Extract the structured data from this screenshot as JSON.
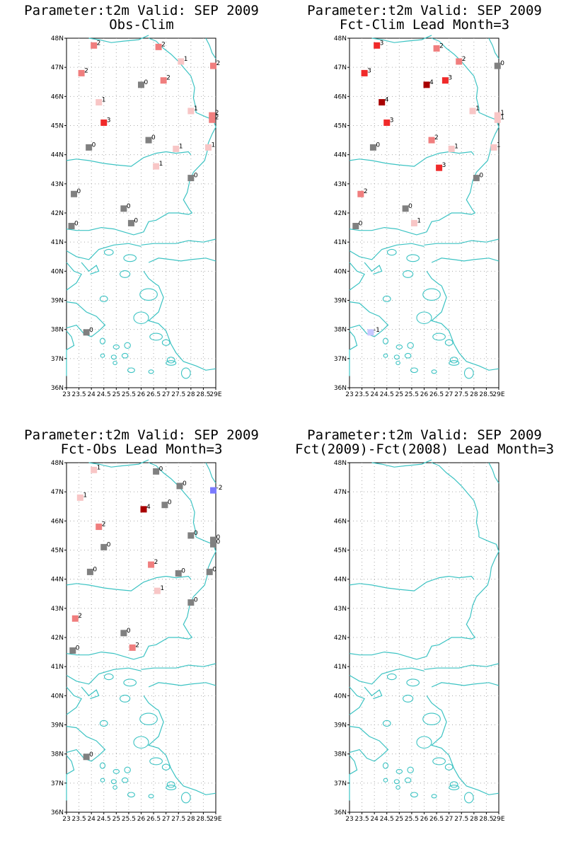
{
  "colors": {
    "coast": "#3cc3c3",
    "grid": "#aaaaaa",
    "zero": "#808080"
  },
  "y_ticks": [
    "48N",
    "47N",
    "46N",
    "45N",
    "44N",
    "43N",
    "42N",
    "41N",
    "40N",
    "39N",
    "38N",
    "37N",
    "36N"
  ],
  "x_ticks": [
    "23",
    "23.5",
    "24",
    "24.5",
    "25",
    "25.5",
    "26",
    "26.5",
    "27",
    "27.5",
    "28",
    "28.5",
    "29E"
  ],
  "panels": [
    {
      "title1": "Parameter:t2m Valid: SEP 2009",
      "title2": "Obs-Clim",
      "stations": [
        {
          "lon": 24.1,
          "lat": 47.75,
          "v": "2"
        },
        {
          "lon": 26.7,
          "lat": 47.7,
          "v": "2"
        },
        {
          "lon": 27.6,
          "lat": 47.2,
          "v": "1"
        },
        {
          "lon": 28.9,
          "lat": 47.05,
          "v": "2"
        },
        {
          "lon": 23.6,
          "lat": 46.8,
          "v": "2"
        },
        {
          "lon": 26.9,
          "lat": 46.55,
          "v": "2"
        },
        {
          "lon": 26.0,
          "lat": 46.4,
          "v": "0"
        },
        {
          "lon": 24.3,
          "lat": 45.8,
          "v": "1"
        },
        {
          "lon": 28.0,
          "lat": 45.5,
          "v": "1"
        },
        {
          "lon": 28.85,
          "lat": 45.35,
          "v": "2"
        },
        {
          "lon": 28.85,
          "lat": 45.2,
          "v": "2"
        },
        {
          "lon": 24.5,
          "lat": 45.1,
          "v": "3"
        },
        {
          "lon": 26.3,
          "lat": 44.5,
          "v": "0"
        },
        {
          "lon": 23.9,
          "lat": 44.25,
          "v": "0"
        },
        {
          "lon": 27.4,
          "lat": 44.2,
          "v": "1"
        },
        {
          "lon": 28.7,
          "lat": 44.25,
          "v": "1"
        },
        {
          "lon": 26.6,
          "lat": 43.6,
          "v": "1"
        },
        {
          "lon": 28.0,
          "lat": 43.2,
          "v": "0"
        },
        {
          "lon": 23.3,
          "lat": 42.65,
          "v": "0"
        },
        {
          "lon": 25.3,
          "lat": 42.15,
          "v": "0"
        },
        {
          "lon": 25.6,
          "lat": 41.65,
          "v": "0"
        },
        {
          "lon": 23.2,
          "lat": 41.55,
          "v": "0"
        },
        {
          "lon": 23.8,
          "lat": 37.9,
          "v": "0"
        }
      ]
    },
    {
      "title1": "Parameter:t2m Valid: SEP 2009",
      "title2": "Fct-Clim Lead Month=3",
      "stations": [
        {
          "lon": 24.1,
          "lat": 47.75,
          "v": "3"
        },
        {
          "lon": 26.5,
          "lat": 47.65,
          "v": "2"
        },
        {
          "lon": 27.4,
          "lat": 47.2,
          "v": "2"
        },
        {
          "lon": 28.95,
          "lat": 47.05,
          "v": "0"
        },
        {
          "lon": 23.6,
          "lat": 46.8,
          "v": "3"
        },
        {
          "lon": 26.1,
          "lat": 46.4,
          "v": "4"
        },
        {
          "lon": 26.85,
          "lat": 46.55,
          "v": "3"
        },
        {
          "lon": 24.3,
          "lat": 45.8,
          "v": "4"
        },
        {
          "lon": 24.5,
          "lat": 45.1,
          "v": "3"
        },
        {
          "lon": 27.95,
          "lat": 45.5,
          "v": "1"
        },
        {
          "lon": 28.95,
          "lat": 45.35,
          "v": "1"
        },
        {
          "lon": 28.95,
          "lat": 45.2,
          "v": "1"
        },
        {
          "lon": 26.3,
          "lat": 44.5,
          "v": "2"
        },
        {
          "lon": 23.95,
          "lat": 44.25,
          "v": "0"
        },
        {
          "lon": 27.1,
          "lat": 44.2,
          "v": "1"
        },
        {
          "lon": 28.8,
          "lat": 44.25,
          "v": "1"
        },
        {
          "lon": 26.6,
          "lat": 43.55,
          "v": "3"
        },
        {
          "lon": 28.1,
          "lat": 43.2,
          "v": "0"
        },
        {
          "lon": 23.45,
          "lat": 42.65,
          "v": "2"
        },
        {
          "lon": 25.25,
          "lat": 42.15,
          "v": "0"
        },
        {
          "lon": 25.6,
          "lat": 41.65,
          "v": "1"
        },
        {
          "lon": 23.25,
          "lat": 41.55,
          "v": "0"
        },
        {
          "lon": 23.85,
          "lat": 37.9,
          "v": "-1"
        }
      ]
    },
    {
      "title1": "Parameter:t2m Valid: SEP 2009",
      "title2": "Fct-Obs Lead Month=3",
      "stations": [
        {
          "lon": 24.1,
          "lat": 47.75,
          "v": "1"
        },
        {
          "lon": 26.6,
          "lat": 47.7,
          "v": "0"
        },
        {
          "lon": 27.55,
          "lat": 47.2,
          "v": "0"
        },
        {
          "lon": 28.9,
          "lat": 47.05,
          "v": "-2"
        },
        {
          "lon": 23.55,
          "lat": 46.8,
          "v": "1"
        },
        {
          "lon": 26.1,
          "lat": 46.4,
          "v": "4"
        },
        {
          "lon": 26.95,
          "lat": 46.55,
          "v": "0"
        },
        {
          "lon": 24.3,
          "lat": 45.8,
          "v": "2"
        },
        {
          "lon": 24.5,
          "lat": 45.1,
          "v": "0"
        },
        {
          "lon": 28.0,
          "lat": 45.5,
          "v": "0"
        },
        {
          "lon": 28.9,
          "lat": 45.35,
          "v": "0"
        },
        {
          "lon": 28.9,
          "lat": 45.2,
          "v": "0"
        },
        {
          "lon": 26.4,
          "lat": 44.5,
          "v": "2"
        },
        {
          "lon": 23.95,
          "lat": 44.25,
          "v": "0"
        },
        {
          "lon": 27.5,
          "lat": 44.2,
          "v": "0"
        },
        {
          "lon": 28.75,
          "lat": 44.25,
          "v": "0"
        },
        {
          "lon": 26.65,
          "lat": 43.6,
          "v": "1"
        },
        {
          "lon": 28.0,
          "lat": 43.2,
          "v": "0"
        },
        {
          "lon": 23.35,
          "lat": 42.65,
          "v": "2"
        },
        {
          "lon": 25.3,
          "lat": 42.15,
          "v": "0"
        },
        {
          "lon": 25.65,
          "lat": 41.65,
          "v": "2"
        },
        {
          "lon": 23.25,
          "lat": 41.55,
          "v": "0"
        },
        {
          "lon": 23.8,
          "lat": 37.9,
          "v": "0"
        }
      ]
    },
    {
      "title1": "Parameter:t2m Valid: SEP 2009",
      "title2": "Fct(2009)-Fct(2008) Lead Month=3",
      "stations": []
    }
  ]
}
